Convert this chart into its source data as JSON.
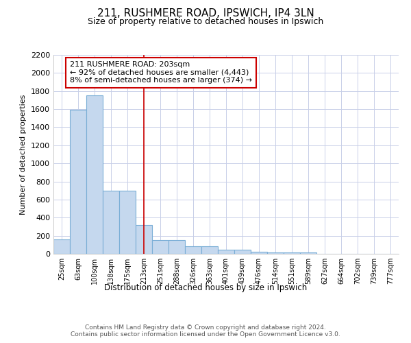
{
  "title": "211, RUSHMERE ROAD, IPSWICH, IP4 3LN",
  "subtitle": "Size of property relative to detached houses in Ipswich",
  "xlabel": "Distribution of detached houses by size in Ipswich",
  "ylabel": "Number of detached properties",
  "categories": [
    "25sqm",
    "63sqm",
    "100sqm",
    "138sqm",
    "175sqm",
    "213sqm",
    "251sqm",
    "288sqm",
    "326sqm",
    "363sqm",
    "401sqm",
    "439sqm",
    "476sqm",
    "514sqm",
    "551sqm",
    "589sqm",
    "627sqm",
    "664sqm",
    "702sqm",
    "739sqm",
    "777sqm"
  ],
  "values": [
    160,
    1590,
    1755,
    700,
    700,
    320,
    155,
    155,
    85,
    85,
    45,
    45,
    20,
    15,
    12,
    12,
    0,
    0,
    0,
    0,
    0
  ],
  "bar_color": "#c5d8ee",
  "bar_edge_color": "#7aaed6",
  "annotation_text": "211 RUSHMERE ROAD: 203sqm\n← 92% of detached houses are smaller (4,443)\n8% of semi-detached houses are larger (374) →",
  "annotation_box_color": "#ffffff",
  "annotation_box_edge_color": "#cc0000",
  "ylim": [
    0,
    2200
  ],
  "yticks": [
    0,
    200,
    400,
    600,
    800,
    1000,
    1200,
    1400,
    1600,
    1800,
    2000,
    2200
  ],
  "red_line_color": "#cc0000",
  "footer_text": "Contains HM Land Registry data © Crown copyright and database right 2024.\nContains public sector information licensed under the Open Government Licence v3.0.",
  "bg_color": "#ffffff",
  "plot_bg_color": "#ffffff",
  "grid_color": "#c8cfe8"
}
